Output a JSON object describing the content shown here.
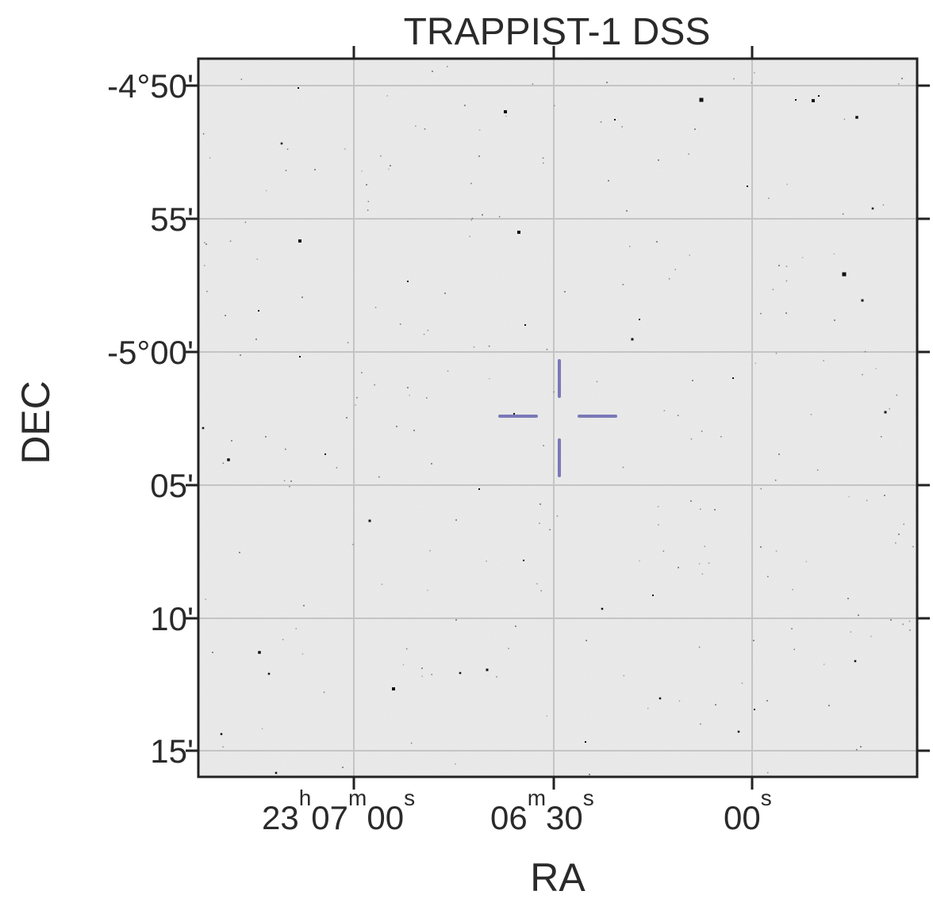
{
  "title": "TRAPPIST-1 DSS",
  "xlabel": "RA",
  "ylabel": "DEC",
  "ra_ticks": [
    {
      "main": "23",
      "h": "h",
      "m1": "07",
      "m": "m",
      "sec": "00",
      "s": "s"
    },
    {
      "main": "06",
      "m": "m",
      "sec": "30",
      "s": "s"
    },
    {
      "sec": "00",
      "s": "s"
    }
  ],
  "dec_ticks": [
    "-4°50'",
    "55'",
    "-5°00'",
    "05'",
    "10'",
    "15'"
  ],
  "grid": true,
  "colors": {
    "image_background": "#ececec",
    "grid": "#c4c4c4",
    "frame": "#222222",
    "reticle": "#7b78b8",
    "stars": "#111111"
  },
  "target_marker": "crosshair-reticle"
}
